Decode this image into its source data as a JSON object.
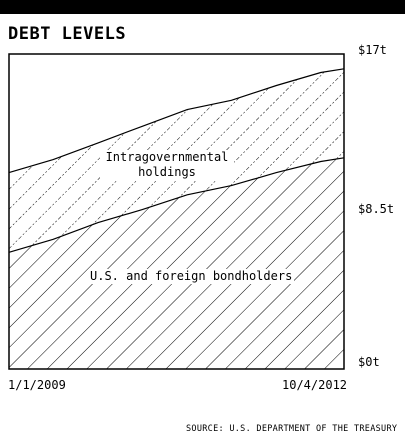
{
  "header": {
    "title": "DEBT LEVELS"
  },
  "chart_data": {
    "type": "area",
    "stacked": true,
    "title": "DEBT LEVELS",
    "ylim": [
      0,
      17
    ],
    "yticks": [
      "$17t",
      "$8.5t",
      "$0t"
    ],
    "xticks": [
      "1/1/2009",
      "10/4/2012"
    ],
    "x": [
      "2009-01-01",
      "2009-07-01",
      "2010-01-01",
      "2010-07-01",
      "2011-01-01",
      "2011-07-01",
      "2012-01-01",
      "2012-07-01",
      "2012-10-04"
    ],
    "series": [
      {
        "name": "U.S. and foreign bondholders",
        "values": [
          6.3,
          7.0,
          7.9,
          8.6,
          9.4,
          9.9,
          10.6,
          11.2,
          11.4
        ]
      },
      {
        "name": "Intragovernmental holdings",
        "values": [
          4.3,
          4.3,
          4.3,
          4.5,
          4.6,
          4.6,
          4.7,
          4.8,
          4.8
        ]
      }
    ],
    "grid": false,
    "source": "SOURCE: U.S. DEPARTMENT OF THE TREASURY"
  }
}
